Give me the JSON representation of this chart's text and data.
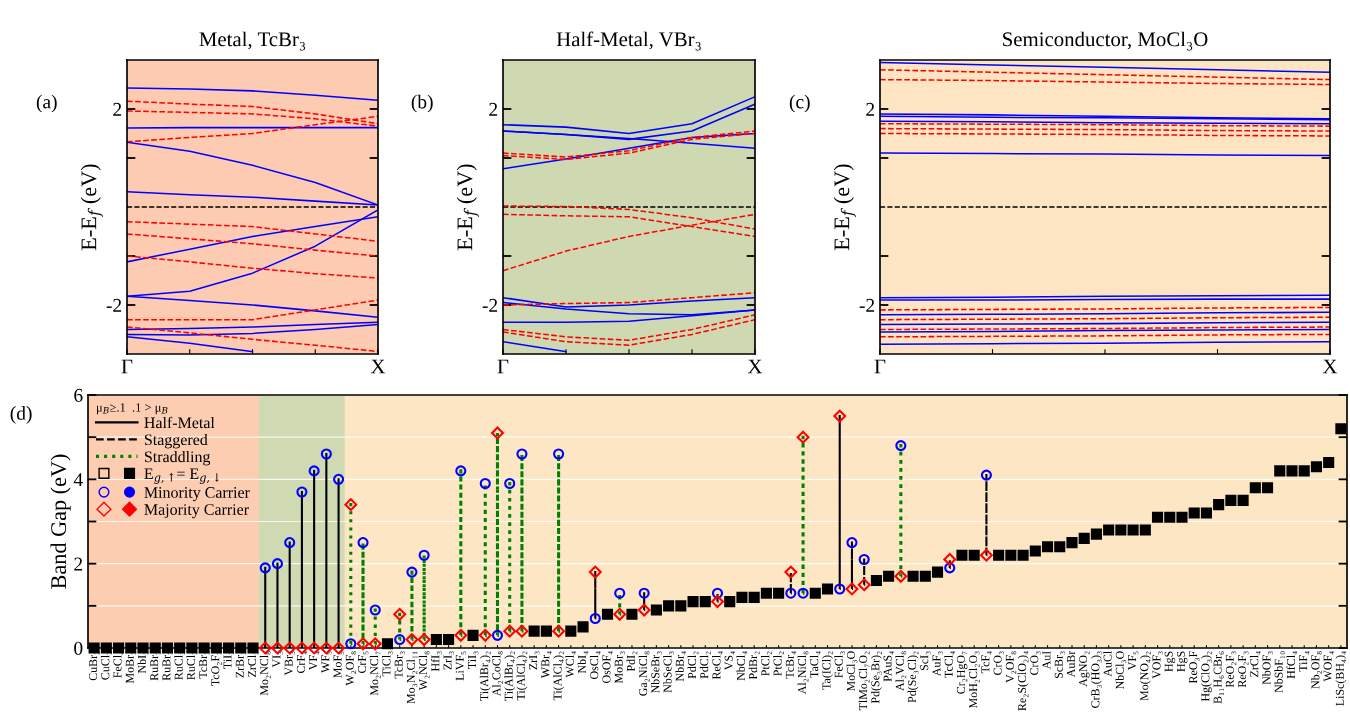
{
  "chart_data": [
    {
      "type": "line",
      "title": "Metal, TcBr₃",
      "ylabel": "E-E$_{f}$ (eV)",
      "annotations": [
        "(a)"
      ],
      "categories": [
        "Γ",
        null,
        null,
        null,
        "X"
      ],
      "ylim": [
        -3,
        3
      ],
      "yticks": [
        -2,
        {
          "value": -1,
          "label": null
        },
        {
          "value": 1,
          "label": null
        },
        2
      ],
      "ref_lines": [
        {
          "axis": "y",
          "value": 0,
          "color": "#000000",
          "line_style": "dashed"
        }
      ],
      "series": [
        {
          "color": "#0000ff",
          "line_style": "solid",
          "values": [
            2.43,
            2.41,
            2.37,
            2.28,
            2.18
          ]
        },
        {
          "color": "#0000ff",
          "line_style": "solid",
          "values": [
            1.61,
            1.62,
            1.62,
            1.62,
            1.62
          ]
        },
        {
          "color": "#0000ff",
          "line_style": "solid",
          "values": [
            1.32,
            1.14,
            0.85,
            0.5,
            0.04
          ]
        },
        {
          "color": "#0000ff",
          "line_style": "solid",
          "values": [
            0.31,
            0.25,
            0.2,
            0.12,
            0.04
          ]
        },
        {
          "color": "#0000ff",
          "line_style": "solid",
          "values": [
            -1.12,
            -0.86,
            -0.6,
            -0.4,
            -0.2
          ]
        },
        {
          "color": "#0000ff",
          "line_style": "solid",
          "values": [
            -1.82,
            -1.72,
            -1.35,
            -0.8,
            -0.06
          ]
        },
        {
          "color": "#0000ff",
          "line_style": "solid",
          "values": [
            -1.82,
            -1.91,
            -2.0,
            -2.12,
            -2.25
          ]
        },
        {
          "color": "#0000ff",
          "line_style": "solid",
          "values": [
            -2.5,
            -2.48,
            -2.45,
            -2.4,
            -2.35
          ]
        },
        {
          "color": "#0000ff",
          "line_style": "solid",
          "values": [
            -2.6,
            -2.61,
            -2.58,
            -2.5,
            -2.4
          ]
        },
        {
          "color": "#0000ff",
          "line_style": "solid",
          "values": [
            -2.65,
            -2.78,
            -2.95,
            null,
            null
          ]
        },
        {
          "color": "#ff0000",
          "line_style": "dashed",
          "values": [
            2.16,
            2.1,
            2.05,
            1.9,
            1.7
          ]
        },
        {
          "color": "#ff0000",
          "line_style": "dashed",
          "values": [
            1.96,
            1.93,
            1.9,
            1.8,
            1.65
          ]
        },
        {
          "color": "#ff0000",
          "line_style": "dashed",
          "values": [
            1.33,
            1.42,
            1.5,
            1.68,
            1.85
          ]
        },
        {
          "color": "#ff0000",
          "line_style": "dashed",
          "values": [
            -0.3,
            -0.35,
            -0.4,
            -0.55,
            -0.7
          ]
        },
        {
          "color": "#ff0000",
          "line_style": "dashed",
          "values": [
            -0.55,
            -0.65,
            -0.75,
            -0.88,
            -1.0
          ]
        },
        {
          "color": "#ff0000",
          "line_style": "dashed",
          "values": [
            -1.0,
            -1.12,
            -1.25,
            -1.36,
            -1.45
          ]
        },
        {
          "color": "#ff0000",
          "line_style": "dashed",
          "values": [
            -2.3,
            -2.3,
            -2.3,
            -2.1,
            -1.9
          ]
        },
        {
          "color": "#ff0000",
          "line_style": "dashed",
          "values": [
            -2.45,
            -2.57,
            -2.7,
            -2.82,
            -2.95
          ]
        }
      ]
    },
    {
      "type": "line",
      "title": "Half-Metal, VBr₃",
      "ylabel": "E-E$_{f}$ (eV)",
      "annotations": [
        "(b)"
      ],
      "categories": [
        "Γ",
        null,
        null,
        null,
        "X"
      ],
      "ylim": [
        -3,
        3
      ],
      "yticks": [
        -2,
        {
          "value": -1,
          "label": null
        },
        {
          "value": 1,
          "label": null
        },
        2
      ],
      "ref_lines": [
        {
          "axis": "y",
          "value": 0,
          "color": "#000000",
          "line_style": "dashed"
        }
      ],
      "series": [
        {
          "color": "#0000ff",
          "line_style": "solid",
          "values": [
            1.68,
            1.63,
            1.5,
            1.7,
            2.25
          ]
        },
        {
          "color": "#0000ff",
          "line_style": "solid",
          "values": [
            1.55,
            1.48,
            1.38,
            1.55,
            2.1
          ]
        },
        {
          "color": "#0000ff",
          "line_style": "solid",
          "values": [
            0.78,
            0.98,
            1.2,
            1.42,
            1.5
          ]
        },
        {
          "color": "#0000ff",
          "line_style": "solid",
          "values": [
            1.55,
            1.48,
            1.4,
            1.3,
            1.2
          ]
        },
        {
          "color": "#0000ff",
          "line_style": "solid",
          "values": [
            -1.85,
            -2.04,
            -2.0,
            -1.92,
            -1.85
          ]
        },
        {
          "color": "#0000ff",
          "line_style": "solid",
          "values": [
            -1.95,
            -2.08,
            -2.18,
            -2.2,
            -2.1
          ]
        },
        {
          "color": "#0000ff",
          "line_style": "solid",
          "values": [
            -2.35,
            -2.35,
            -2.33,
            -2.22,
            -2.1
          ]
        },
        {
          "color": "#0000ff",
          "line_style": "solid",
          "values": [
            -2.75,
            -2.95,
            null,
            null,
            null
          ]
        },
        {
          "color": "#ff0000",
          "line_style": "dashed",
          "values": [
            1.1,
            1.02,
            1.15,
            1.42,
            1.55
          ]
        },
        {
          "color": "#ff0000",
          "line_style": "dashed",
          "values": [
            1.05,
            0.97,
            1.1,
            1.38,
            1.5
          ]
        },
        {
          "color": "#ff0000",
          "line_style": "dashed",
          "values": [
            0.02,
            0.01,
            -0.05,
            -0.22,
            -0.45
          ]
        },
        {
          "color": "#ff0000",
          "line_style": "dashed",
          "values": [
            -1.3,
            -0.9,
            -0.6,
            -0.37,
            -0.15
          ]
        },
        {
          "color": "#ff0000",
          "line_style": "dashed",
          "values": [
            -0.15,
            -0.18,
            -0.2,
            -0.4,
            -0.6
          ]
        },
        {
          "color": "#ff0000",
          "line_style": "dashed",
          "values": [
            -2.0,
            -1.97,
            -1.95,
            -1.85,
            -1.75
          ]
        },
        {
          "color": "#ff0000",
          "line_style": "dashed",
          "values": [
            -2.5,
            -2.65,
            -2.72,
            -2.5,
            -2.2
          ]
        },
        {
          "color": "#ff0000",
          "line_style": "dashed",
          "values": [
            -2.55,
            -2.75,
            -2.82,
            -2.6,
            -2.3
          ]
        }
      ]
    },
    {
      "type": "line",
      "title": "Semiconductor, MoCl₃O",
      "ylabel": "E-E$_{f}$ (eV)",
      "annotations": [
        "(c)"
      ],
      "categories": [
        "Γ",
        null,
        null,
        null,
        "X"
      ],
      "ylim": [
        -3,
        3
      ],
      "yticks": [
        -2,
        {
          "value": -1,
          "label": null
        },
        {
          "value": 1,
          "label": null
        },
        2
      ],
      "ref_lines": [
        {
          "axis": "y",
          "value": 0,
          "color": "#000000",
          "line_style": "dashed"
        }
      ],
      "series": [
        {
          "color": "#0000ff",
          "line_style": "solid",
          "values": [
            2.95,
            2.9,
            2.85,
            2.8,
            2.75
          ]
        },
        {
          "color": "#0000ff",
          "line_style": "solid",
          "values": [
            1.9,
            1.88,
            1.85,
            1.82,
            1.8
          ]
        },
        {
          "color": "#0000ff",
          "line_style": "solid",
          "values": [
            1.85,
            1.83,
            1.82,
            1.8,
            1.78
          ]
        },
        {
          "color": "#0000ff",
          "line_style": "solid",
          "values": [
            1.75,
            1.74,
            1.72,
            1.71,
            1.7
          ]
        },
        {
          "color": "#0000ff",
          "line_style": "solid",
          "values": [
            1.1,
            1.09,
            1.08,
            1.06,
            1.05
          ]
        },
        {
          "color": "#0000ff",
          "line_style": "solid",
          "values": [
            -1.85,
            -1.84,
            -1.82,
            -1.81,
            -1.8
          ]
        },
        {
          "color": "#0000ff",
          "line_style": "solid",
          "values": [
            -1.9,
            -1.9,
            -1.89,
            -1.88,
            -1.88
          ]
        },
        {
          "color": "#0000ff",
          "line_style": "solid",
          "values": [
            -2.2,
            -2.19,
            -2.18,
            -2.16,
            -2.15
          ]
        },
        {
          "color": "#0000ff",
          "line_style": "solid",
          "values": [
            -2.4,
            -2.39,
            -2.38,
            -2.36,
            -2.35
          ]
        },
        {
          "color": "#0000ff",
          "line_style": "solid",
          "values": [
            -2.55,
            -2.54,
            -2.52,
            -2.51,
            -2.5
          ]
        },
        {
          "color": "#0000ff",
          "line_style": "solid",
          "values": [
            -2.8,
            -2.79,
            -2.78,
            -2.76,
            -2.75
          ]
        },
        {
          "color": "#ff0000",
          "line_style": "dashed",
          "values": [
            2.8,
            2.75,
            2.7,
            2.65,
            2.6
          ]
        },
        {
          "color": "#ff0000",
          "line_style": "dashed",
          "values": [
            2.6,
            2.58,
            2.55,
            2.52,
            2.5
          ]
        },
        {
          "color": "#ff0000",
          "line_style": "dashed",
          "values": [
            1.7,
            1.69,
            1.68,
            1.66,
            1.65
          ]
        },
        {
          "color": "#ff0000",
          "line_style": "dashed",
          "values": [
            1.6,
            1.59,
            1.58,
            1.56,
            1.55
          ]
        },
        {
          "color": "#ff0000",
          "line_style": "dashed",
          "values": [
            1.5,
            1.49,
            1.48,
            1.46,
            1.45
          ]
        },
        {
          "color": "#ff0000",
          "line_style": "dashed",
          "values": [
            -2.1,
            -2.09,
            -2.08,
            -2.06,
            -2.05
          ]
        },
        {
          "color": "#ff0000",
          "line_style": "dashed",
          "values": [
            -2.3,
            -2.29,
            -2.28,
            -2.26,
            -2.25
          ]
        },
        {
          "color": "#ff0000",
          "line_style": "dashed",
          "values": [
            -2.5,
            -2.49,
            -2.48,
            -2.46,
            -2.45
          ]
        },
        {
          "color": "#ff0000",
          "line_style": "dashed",
          "values": [
            -2.65,
            -2.64,
            -2.63,
            -2.61,
            -2.6
          ]
        }
      ]
    },
    {
      "type": "scatter",
      "ylabel": "Band Gap (eV)",
      "annotations": [
        "(d)"
      ],
      "ylim": [
        0,
        6
      ],
      "yticks": [
        0,
        {
          "value": 1,
          "label": null
        },
        2,
        {
          "value": 3,
          "label": null
        },
        4,
        {
          "value": 5,
          "label": null
        },
        6
      ],
      "grid": "y",
      "legend": "top left",
      "legend_title": "μ$_{B}$≥.1  .1 > μ$_{B}$",
      "categories": [
        "CuBr₂",
        "CuCl₂",
        "FeCl₄",
        "MoBr₃",
        "NbI₃",
        "RuBr₃",
        "RuBr₃",
        "RuCl₃",
        "RuCl₃",
        "TcBr₃",
        "TcO₂F₃",
        "TiI₃",
        "ZrBr₃",
        "ZrCl₃",
        "Mo₂NCl₈",
        "VI₃",
        "VBr₃",
        "CrF₄",
        "VF₄",
        "WF₅",
        "MoF₅",
        "W₂OF₈",
        "CrF₅",
        "Mo₂NCl₇",
        "TiCl₃",
        "TcBr₃",
        "Mo₃N₂Cl₁₁",
        "W₂NCl₈",
        "HfI₃",
        "ZrI₃",
        "LiVF₅",
        "TiI₃",
        "Ti(AlBr₄)₂",
        "Al₂CoCl₈",
        "Ti(AlBr₄)₂",
        "Ti(AlCl₄)₂",
        "ZrI₃",
        "WBr₄",
        "Ti(AlCl₄)₂",
        "WCl₄",
        "NbI₄",
        "OsCl₄",
        "OsOF₄",
        "MoBr₃",
        "PdI₂",
        "Ga₂NiCl₈",
        "NbSeBr₃",
        "NbSeCl₃",
        "NbBr₄",
        "PdCl₂",
        "PdCl₂",
        "ReCl₄",
        "VS₄",
        "NbCl₄",
        "PdBr₂",
        "PtCl₂",
        "PtCl₂",
        "TcBr₄",
        "Al₂NiCl₈",
        "TaCl₄",
        "Ta(ICl)₂",
        "FeCl₃",
        "MoCl₃O",
        "TlMo₂Cl₇O₂",
        "Pd(Se₃Br)₂",
        "PAuS₄",
        "Al₂VCl₈",
        "Pd(Se₃Cl)₂",
        "ScI₃",
        "AuF₃",
        "TcCl₄",
        "Cr₂HgO₇",
        "MoH₂Cl₂O₃",
        "TcF₄",
        "CrO₃",
        "V₂OF₈",
        "Re₂S(ClO₂)₄",
        "CrO₃",
        "AuI",
        "ScBr₃",
        "AuBr",
        "AgNO₂",
        "CrB₃(HO₃)₃",
        "AuCl",
        "NbCl₃O",
        "VF₅",
        "Mo(NO₄)₂",
        "VOF₃",
        "HgS",
        "HgS",
        "ReO₃F",
        "Hg(ClO₃)₂",
        "B₁₁H₆CBr₆",
        "ReO₂F₃",
        "ReO₂F₃",
        "ZrCl₄",
        "NbOF₃",
        "NbSbF₁₀",
        "HfCl₄",
        "TiF₄",
        "Nb₂OF₈",
        "WOF₄",
        "LiSc(BH₄)₄"
      ],
      "series": [
        {
          "type": "bar",
          "name": "Half-Metal",
          "color": "#000000",
          "line_style": "solid",
          "base": [
            null,
            null,
            null,
            null,
            null,
            null,
            null,
            null,
            null,
            null,
            null,
            null,
            null,
            null,
            0,
            0,
            0,
            0,
            0,
            0,
            0,
            null,
            null,
            null,
            null,
            null,
            null,
            null,
            null,
            null,
            null,
            null,
            null,
            null,
            null,
            null,
            null,
            null,
            null,
            null,
            null,
            null,
            null,
            null,
            null,
            null,
            null,
            null,
            null,
            null,
            null,
            null,
            null,
            null,
            null,
            null,
            null,
            null,
            null,
            null,
            null,
            null,
            null,
            null,
            null,
            null,
            null,
            null,
            null,
            null,
            null,
            null,
            null,
            null,
            null,
            null,
            null,
            null,
            null,
            null,
            null,
            null,
            null,
            null,
            null,
            null,
            null,
            null,
            null,
            null,
            null,
            null,
            null,
            null,
            null,
            null,
            null,
            null,
            null,
            null,
            null,
            null,
            null
          ],
          "values": [
            null,
            null,
            null,
            null,
            null,
            null,
            null,
            null,
            null,
            null,
            null,
            null,
            null,
            null,
            1.9,
            2.0,
            2.5,
            3.7,
            4.2,
            4.6,
            4.0,
            null,
            null,
            null,
            null,
            null,
            null,
            null,
            null,
            null,
            null,
            null,
            null,
            null,
            null,
            null,
            null,
            null,
            null,
            null,
            null,
            null,
            null,
            null,
            null,
            null,
            null,
            null,
            null,
            null,
            null,
            null,
            null,
            null,
            null,
            null,
            null,
            null,
            null,
            null,
            null,
            null,
            null,
            null,
            null,
            null,
            null,
            null,
            null,
            null,
            null,
            null,
            null,
            null,
            null,
            null,
            null,
            null,
            null,
            null,
            null,
            null,
            null,
            null,
            null,
            null,
            null,
            null,
            null,
            null,
            null,
            null,
            null,
            null,
            null,
            null,
            null,
            null,
            null,
            null,
            null,
            null,
            null
          ]
        },
        {
          "type": "bar",
          "name": "Staggered",
          "color": "#000000",
          "line_style": "dashed",
          "base": [
            null,
            null,
            null,
            null,
            null,
            null,
            null,
            null,
            null,
            null,
            null,
            null,
            null,
            null,
            null,
            null,
            null,
            null,
            null,
            null,
            null,
            null,
            null,
            null,
            null,
            null,
            null,
            null,
            null,
            null,
            null,
            null,
            null,
            null,
            null,
            null,
            null,
            null,
            null,
            null,
            null,
            0.7,
            null,
            null,
            null,
            0.9,
            null,
            null,
            null,
            null,
            null,
            1.1,
            null,
            null,
            null,
            null,
            null,
            1.3,
            null,
            null,
            null,
            1.4,
            1.4,
            1.5,
            null,
            null,
            null,
            null,
            null,
            null,
            1.9,
            null,
            null,
            2.2,
            null,
            null,
            null,
            null,
            null,
            null,
            null,
            null,
            null,
            null,
            null,
            null,
            null,
            null,
            null,
            null,
            null,
            null,
            null,
            null,
            null,
            null,
            null,
            null,
            null,
            null,
            null,
            null,
            null
          ],
          "values": [
            null,
            null,
            null,
            null,
            null,
            null,
            null,
            null,
            null,
            null,
            null,
            null,
            null,
            null,
            null,
            null,
            null,
            null,
            null,
            null,
            null,
            null,
            null,
            null,
            null,
            null,
            null,
            null,
            null,
            null,
            null,
            null,
            null,
            null,
            null,
            null,
            null,
            null,
            null,
            null,
            null,
            1.1,
            null,
            null,
            null,
            0.4,
            null,
            null,
            null,
            null,
            null,
            0.2,
            null,
            null,
            null,
            null,
            null,
            0.5,
            null,
            null,
            null,
            4.1,
            1.1,
            0.6,
            null,
            null,
            null,
            null,
            null,
            null,
            0.2,
            null,
            null,
            1.9,
            null,
            null,
            null,
            null,
            null,
            null,
            null,
            null,
            null,
            null,
            null,
            null,
            null,
            null,
            null,
            null,
            null,
            null,
            null,
            null,
            null,
            null,
            null,
            null,
            null,
            null,
            null,
            null,
            null
          ]
        },
        {
          "type": "bar",
          "name": "Straddling",
          "color": "#008000",
          "line_style": "dotted",
          "base": [
            null,
            null,
            null,
            null,
            null,
            null,
            null,
            null,
            null,
            null,
            null,
            null,
            null,
            null,
            null,
            null,
            null,
            null,
            null,
            null,
            null,
            0.1,
            0.1,
            0.1,
            null,
            0.2,
            0.2,
            0.2,
            null,
            null,
            0.3,
            null,
            0.3,
            0.3,
            0.4,
            0.4,
            null,
            null,
            0.4,
            null,
            null,
            null,
            null,
            0.8,
            null,
            null,
            null,
            null,
            null,
            null,
            null,
            null,
            null,
            null,
            null,
            null,
            null,
            null,
            1.3,
            null,
            null,
            null,
            null,
            null,
            null,
            null,
            1.7,
            null,
            null,
            null,
            null,
            null,
            null,
            null,
            null,
            null,
            null,
            null,
            null,
            null,
            null,
            null,
            null,
            null,
            null,
            null,
            null,
            null,
            null,
            null,
            null,
            null,
            null,
            null,
            null,
            null,
            null,
            null,
            null,
            null,
            null,
            null,
            null
          ],
          "values": [
            null,
            null,
            null,
            null,
            null,
            null,
            null,
            null,
            null,
            null,
            null,
            null,
            null,
            null,
            null,
            null,
            null,
            null,
            null,
            null,
            null,
            3.3,
            2.4,
            0.8,
            null,
            0.6,
            1.6,
            2.0,
            null,
            null,
            3.9,
            null,
            3.6,
            4.8,
            3.5,
            4.2,
            null,
            null,
            4.2,
            null,
            null,
            null,
            null,
            0.5,
            null,
            null,
            null,
            null,
            null,
            null,
            null,
            null,
            null,
            null,
            null,
            null,
            null,
            null,
            3.7,
            null,
            null,
            null,
            null,
            null,
            null,
            null,
            3.1,
            null,
            null,
            null,
            null,
            null,
            null,
            null,
            null,
            null,
            null,
            null,
            null,
            null,
            null,
            null,
            null,
            null,
            null,
            null,
            null,
            null,
            null,
            null,
            null,
            null,
            null,
            null,
            null,
            null,
            null,
            null,
            null,
            null,
            null,
            null,
            null
          ]
        },
        {
          "type": "scatter",
          "marker": "square",
          "color": "#000000",
          "values": [
            null,
            0,
            0,
            0,
            0,
            0,
            0,
            0,
            0,
            0,
            null,
            0,
            null,
            null,
            null,
            null,
            null,
            null,
            null,
            null,
            null,
            null,
            null,
            null,
            null,
            null,
            null,
            null,
            null,
            null,
            null,
            null,
            null,
            null,
            null,
            null,
            null,
            null,
            null,
            null,
            null,
            null,
            null,
            null,
            null,
            null,
            null,
            null,
            null,
            null,
            null,
            null,
            null,
            null,
            null,
            null,
            null,
            null,
            null,
            null,
            null,
            null,
            null,
            null,
            null,
            null,
            null,
            null,
            null,
            null,
            null,
            null,
            null,
            null,
            null,
            null,
            null,
            null,
            null,
            null,
            null,
            null,
            null,
            null,
            null,
            null,
            null,
            null,
            null,
            null,
            null,
            null,
            null,
            null,
            null,
            null,
            null,
            null,
            null,
            null,
            null,
            null,
            null
          ]
        },
        {
          "type": "scatter",
          "name": "E$_{g,↑}$= E$_{g,↓}$",
          "marker": "square",
          "color": "#000000",
          "values": [
            0,
            null,
            null,
            null,
            null,
            null,
            null,
            null,
            null,
            null,
            0,
            null,
            0,
            0,
            null,
            null,
            null,
            null,
            null,
            null,
            null,
            null,
            null,
            null,
            0.1,
            null,
            null,
            null,
            0.2,
            0.2,
            null,
            0.3,
            null,
            null,
            null,
            null,
            0.4,
            0.4,
            null,
            0.4,
            0.5,
            null,
            0.8,
            null,
            0.8,
            null,
            0.9,
            1.0,
            1.0,
            1.1,
            1.1,
            null,
            1.1,
            1.2,
            1.2,
            1.3,
            1.3,
            null,
            null,
            1.3,
            1.4,
            null,
            null,
            null,
            1.6,
            1.7,
            null,
            1.7,
            1.7,
            1.8,
            null,
            2.2,
            2.2,
            null,
            2.2,
            2.2,
            2.2,
            2.3,
            2.4,
            2.4,
            2.5,
            2.6,
            2.7,
            2.8,
            2.8,
            2.8,
            2.8,
            3.1,
            3.1,
            3.1,
            3.2,
            3.2,
            3.4,
            3.5,
            3.5,
            3.8,
            3.8,
            4.2,
            4.2,
            4.2,
            4.3,
            4.4,
            5.2
          ]
        },
        {
          "type": "scatter",
          "name": "Minority Carrier",
          "marker": "circle",
          "color": "#0000ff",
          "values": [
            null,
            null,
            null,
            null,
            null,
            null,
            null,
            null,
            null,
            null,
            null,
            null,
            null,
            null,
            1.9,
            2.0,
            2.5,
            3.7,
            4.2,
            4.6,
            4.0,
            0.1,
            2.5,
            0.9,
            null,
            0.2,
            1.8,
            2.2,
            null,
            null,
            4.2,
            null,
            3.9,
            0.3,
            3.9,
            4.6,
            null,
            null,
            4.6,
            null,
            null,
            0.7,
            null,
            1.3,
            null,
            1.3,
            null,
            null,
            null,
            null,
            null,
            1.3,
            null,
            null,
            null,
            null,
            null,
            1.3,
            1.3,
            null,
            null,
            1.4,
            2.5,
            2.1,
            null,
            null,
            4.8,
            null,
            null,
            null,
            1.9,
            null,
            null,
            4.1,
            null,
            null,
            null,
            null,
            null,
            null,
            null,
            null,
            null,
            null,
            null,
            null,
            null,
            null,
            null,
            null,
            null,
            null,
            null,
            null,
            null,
            null,
            null,
            null,
            null,
            null,
            null,
            null,
            null
          ]
        },
        {
          "type": "scatter",
          "name": "Majority Carrier",
          "marker": "diamond",
          "color": "#ff0000",
          "values": [
            null,
            null,
            null,
            null,
            null,
            null,
            null,
            null,
            null,
            null,
            null,
            null,
            null,
            null,
            0,
            0,
            0,
            0,
            0,
            0,
            0,
            3.4,
            0.1,
            0.1,
            null,
            0.8,
            0.2,
            0.2,
            null,
            null,
            0.3,
            null,
            0.3,
            5.1,
            0.4,
            0.4,
            null,
            null,
            0.4,
            null,
            null,
            1.8,
            null,
            0.8,
            null,
            0.9,
            null,
            null,
            null,
            null,
            null,
            1.1,
            null,
            null,
            null,
            null,
            null,
            1.8,
            5.0,
            null,
            null,
            5.5,
            1.4,
            1.5,
            null,
            null,
            1.7,
            null,
            null,
            null,
            2.1,
            null,
            null,
            2.2,
            null,
            null,
            null,
            null,
            null,
            null,
            null,
            null,
            null,
            null,
            null,
            null,
            null,
            null,
            null,
            null,
            null,
            null,
            null,
            null,
            null,
            null,
            null,
            null,
            null,
            null,
            null,
            null,
            null
          ]
        }
      ]
    }
  ]
}
